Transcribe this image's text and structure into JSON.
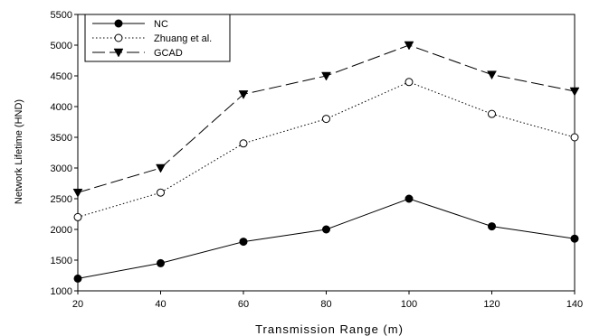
{
  "chart_data": {
    "type": "line",
    "title": "",
    "xlabel": "Transmission Range (m)",
    "ylabel": "Network Lifetime (HND)",
    "x": [
      20,
      40,
      60,
      80,
      100,
      120,
      140
    ],
    "xlim": [
      20,
      140
    ],
    "ylim": [
      1000,
      5500
    ],
    "xticks": [
      "20",
      "40",
      "60",
      "80",
      "100",
      "120",
      "140"
    ],
    "yticks": [
      "1000",
      "1500",
      "2000",
      "2500",
      "3000",
      "3500",
      "4000",
      "4500",
      "5000",
      "5500"
    ],
    "grid": false,
    "legend_position": "top-left",
    "series": [
      {
        "name": "NC",
        "values": [
          1200,
          1450,
          1800,
          2000,
          2500,
          2050,
          1850
        ],
        "line": "solid",
        "marker": "filled-circle",
        "color": "#000000"
      },
      {
        "name": "Zhuang et al.",
        "values": [
          2200,
          2600,
          3400,
          3800,
          4400,
          3880,
          3500
        ],
        "line": "dotted",
        "marker": "open-circle",
        "color": "#000000"
      },
      {
        "name": "GCAD",
        "values": [
          2600,
          3000,
          4200,
          4500,
          5000,
          4520,
          4250
        ],
        "line": "dashed",
        "marker": "filled-triangle-down",
        "color": "#000000"
      }
    ]
  }
}
